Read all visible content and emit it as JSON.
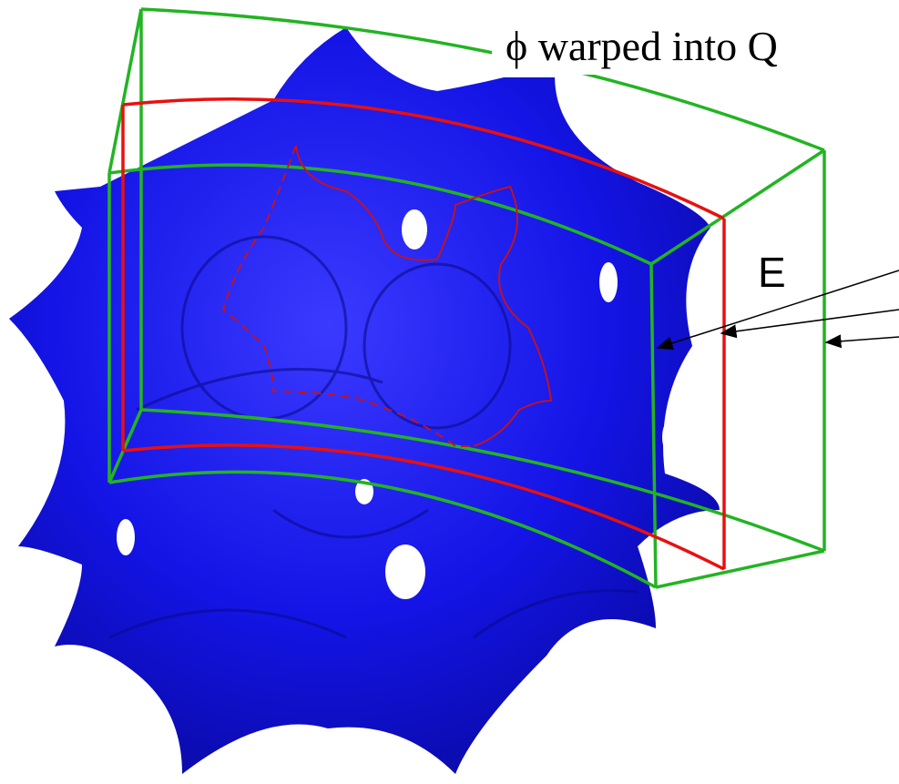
{
  "labels": {
    "title": "ϕ warped into Q",
    "edge": "E"
  }
}
